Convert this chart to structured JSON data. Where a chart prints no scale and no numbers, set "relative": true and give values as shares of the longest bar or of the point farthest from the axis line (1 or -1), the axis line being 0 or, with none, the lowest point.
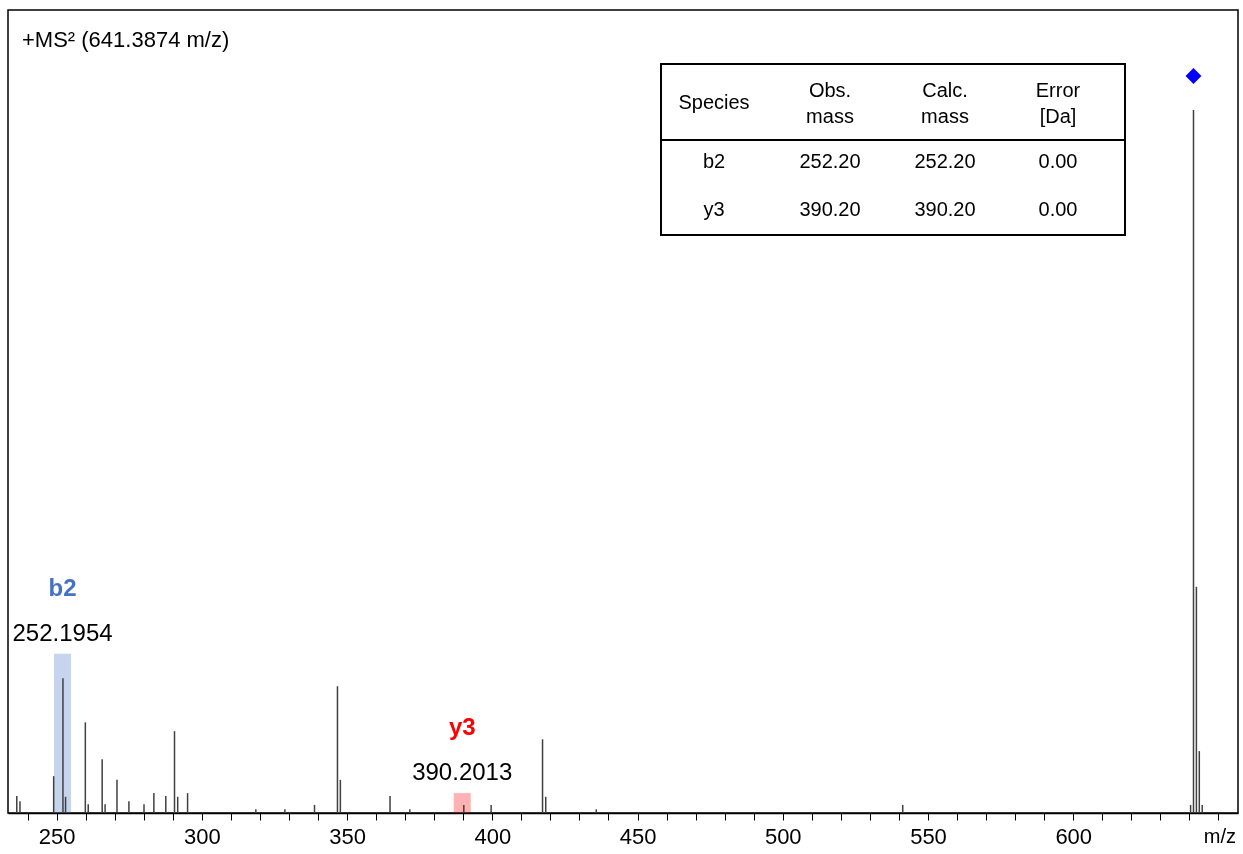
{
  "chart_data": {
    "type": "bar",
    "title": "+MS² (641.3874 m/z)",
    "xlabel": "m/z",
    "relative": true,
    "xlim": [
      235,
      655
    ],
    "xticks": [
      {
        "value": 240,
        "label": null
      },
      250,
      {
        "value": 260,
        "label": null
      },
      {
        "value": 270,
        "label": null
      },
      {
        "value": 280,
        "label": null
      },
      {
        "value": 290,
        "label": null
      },
      300,
      {
        "value": 310,
        "label": null
      },
      {
        "value": 320,
        "label": null
      },
      {
        "value": 330,
        "label": null
      },
      {
        "value": 340,
        "label": null
      },
      350,
      {
        "value": 360,
        "label": null
      },
      {
        "value": 370,
        "label": null
      },
      {
        "value": 380,
        "label": null
      },
      {
        "value": 390,
        "label": null
      },
      400,
      {
        "value": 410,
        "label": null
      },
      {
        "value": 420,
        "label": null
      },
      {
        "value": 430,
        "label": null
      },
      {
        "value": 440,
        "label": null
      },
      450,
      {
        "value": 460,
        "label": null
      },
      {
        "value": 470,
        "label": null
      },
      {
        "value": 480,
        "label": null
      },
      {
        "value": 490,
        "label": null
      },
      500,
      {
        "value": 510,
        "label": null
      },
      {
        "value": 520,
        "label": null
      },
      {
        "value": 530,
        "label": null
      },
      {
        "value": 540,
        "label": null
      },
      550,
      {
        "value": 560,
        "label": null
      },
      {
        "value": 570,
        "label": null
      },
      {
        "value": 580,
        "label": null
      },
      {
        "value": 590,
        "label": null
      },
      600,
      {
        "value": 610,
        "label": null
      },
      {
        "value": 620,
        "label": null
      },
      {
        "value": 630,
        "label": null
      },
      {
        "value": 640,
        "label": null
      },
      {
        "value": 650,
        "label": null
      }
    ],
    "series": [
      {
        "name": "b2",
        "color": "#4472c4",
        "x": [
          252.05
        ],
        "values": [
          0.216
        ]
      },
      {
        "name": "y3",
        "color": "#ff0000",
        "x": [
          389.65
        ],
        "values": [
          0.027
        ]
      },
      {
        "type": "bar",
        "color": "#404040",
        "x": [
          236.3,
          237.4,
          249.0,
          252.2,
          253.1,
          259.9,
          260.9,
          265.7,
          266.7,
          270.8,
          274.9,
          280.1,
          283.5,
          287.6,
          290.6,
          291.7,
          295.1,
          318.6,
          328.6,
          338.8,
          346.7,
          347.7,
          364.8,
          371.6,
          390.2,
          399.6,
          417.3,
          418.4,
          435.8,
          541.3,
          640.4,
          641.4,
          642.4,
          643.4,
          644.4
        ],
        "values": [
          0.023,
          0.016,
          0.05,
          0.183,
          0.022,
          0.123,
          0.012,
          0.073,
          0.012,
          0.045,
          0.016,
          0.012,
          0.027,
          0.023,
          0.111,
          0.022,
          0.027,
          0.005,
          0.005,
          0.011,
          0.172,
          0.045,
          0.023,
          0.005,
          0.011,
          0.011,
          0.1,
          0.022,
          0.005,
          0.011,
          0.011,
          0.954,
          0.307,
          0.084,
          0.011
        ]
      },
      {
        "type": "scatter",
        "color": "#0000ff",
        "marker": "diamond",
        "x": [
          641.4
        ],
        "values": [
          1.0
        ]
      }
    ],
    "annotations": [
      {
        "text": "252.1954",
        "x": 252.05,
        "y": 0.216
      },
      {
        "text": "390.2013",
        "x": 389.65,
        "y": 0.027
      },
      "Species",
      "Obs. mass",
      "Calc. mass",
      "Error [Da]",
      "b2",
      "252.20",
      "252.20",
      "0.00",
      "y3",
      "390.20",
      "390.20",
      "0.00"
    ]
  }
}
